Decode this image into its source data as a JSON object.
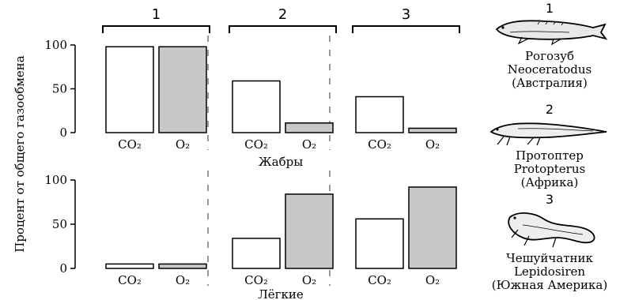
{
  "chart_data": {
    "type": "bar",
    "ylabel": "Процент от общего газообмена",
    "yticks": [
      0,
      50,
      100
    ],
    "ylim": [
      0,
      100
    ],
    "categories": [
      "CO₂",
      "O₂"
    ],
    "group_labels": [
      "1",
      "2",
      "3"
    ],
    "series": [
      {
        "name": "CO₂",
        "fill": "#ffffff"
      },
      {
        "name": "O₂",
        "fill": "#c8c8c8"
      }
    ],
    "panels": [
      {
        "label": "Жабры",
        "groups": [
          {
            "group": "1",
            "values": [
              98,
              98
            ]
          },
          {
            "group": "2",
            "values": [
              59,
              11
            ]
          },
          {
            "group": "3",
            "values": [
              41,
              5
            ]
          }
        ]
      },
      {
        "label": "Лёгкие",
        "groups": [
          {
            "group": "1",
            "values": [
              5,
              5
            ]
          },
          {
            "group": "2",
            "values": [
              34,
              84
            ]
          },
          {
            "group": "3",
            "values": [
              56,
              92
            ]
          }
        ]
      }
    ]
  },
  "legend": [
    {
      "number": "1",
      "lines": [
        "Рогозуб",
        "Neoceratodus",
        "(Австралия)"
      ],
      "icon": "lungfish-neoceratodus-icon"
    },
    {
      "number": "2",
      "lines": [
        "Протоптер",
        "Protopterus",
        "(Африка)"
      ],
      "icon": "lungfish-protopterus-icon"
    },
    {
      "number": "3",
      "lines": [
        "Чешуйчатник",
        "Lepidosiren",
        "(Южная Америка)"
      ],
      "icon": "lungfish-lepidosiren-icon"
    }
  ]
}
